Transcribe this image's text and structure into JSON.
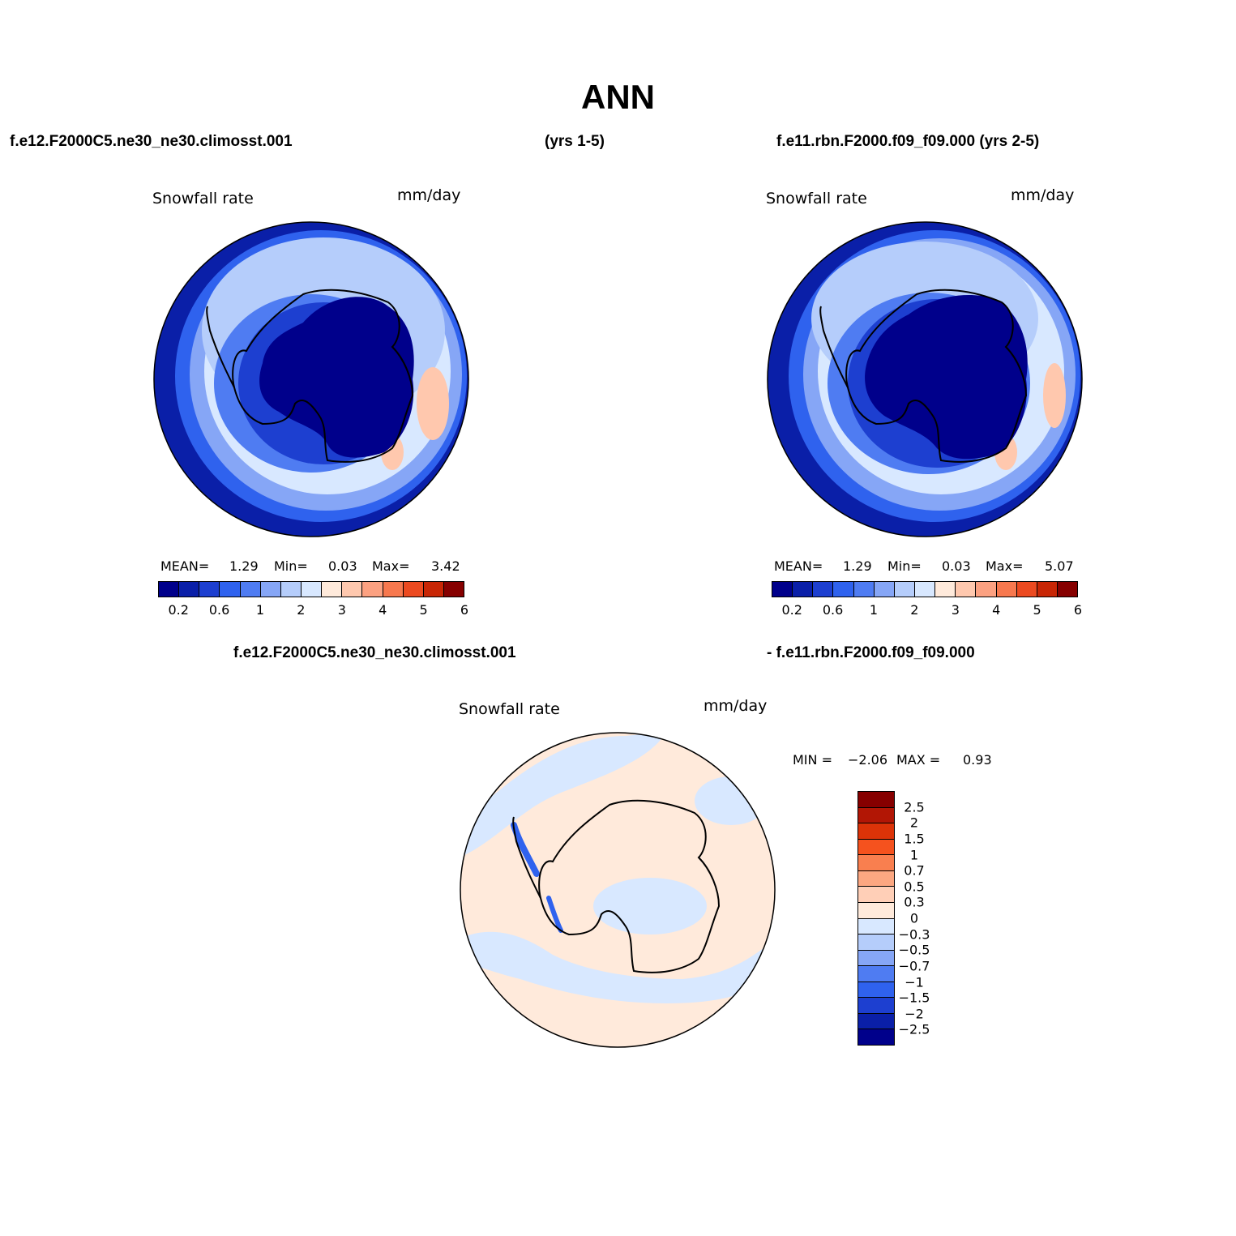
{
  "title": "ANN",
  "header": {
    "case_a": "f.e12.F2000C5.ne30_ne30.climosst.001",
    "years_a": "(yrs 1-5)",
    "case_b": "f.e11.rbn.F2000.f09_f09.000 (yrs 2-5)",
    "diff_a": "f.e12.F2000C5.ne30_ne30.climosst.001",
    "diff_b": "- f.e11.rbn.F2000.f09_f09.000"
  },
  "panels": [
    {
      "variable": "Snowfall rate",
      "units": "mm/day",
      "stats": {
        "mean_label": "MEAN=",
        "mean": "1.29",
        "min_label": "Min=",
        "min": "0.03",
        "max_label": "Max=",
        "max": "3.42"
      }
    },
    {
      "variable": "Snowfall rate",
      "units": "mm/day",
      "stats": {
        "mean_label": "MEAN=",
        "mean": "1.29",
        "min_label": "Min=",
        "min": "0.03",
        "max_label": "Max=",
        "max": "5.07"
      }
    },
    {
      "variable": "Snowfall rate",
      "units": "mm/day",
      "stats": {
        "min_label": "MIN =",
        "min": "−2.06",
        "max_label": "MAX =",
        "max": "0.93"
      }
    }
  ],
  "colorbar_abs": {
    "colors": [
      "#00008b",
      "#0a1fa8",
      "#1d3fd0",
      "#2f62ee",
      "#4f7cf2",
      "#86a6f6",
      "#b5cdfb",
      "#d8e8ff",
      "#ffeadb",
      "#ffc8ae",
      "#fca181",
      "#f7784e",
      "#ec4a20",
      "#c82605",
      "#860000"
    ],
    "ticks": [
      "0.2",
      "0.6",
      "1",
      "2",
      "3",
      "4",
      "5",
      "6"
    ]
  },
  "colorbar_diff": {
    "colors": [
      "#860000",
      "#b21605",
      "#dc3308",
      "#f5521e",
      "#f97f4f",
      "#fca781",
      "#ffcfb7",
      "#ffeadb",
      "#d8e8ff",
      "#b5cdfb",
      "#86a6f6",
      "#4f7cf2",
      "#2f62ee",
      "#1d3fd0",
      "#0a1fa8",
      "#00008b"
    ],
    "ticks": [
      "2.5",
      "2",
      "1.5",
      "1",
      "0.7",
      "0.5",
      "0.3",
      "0",
      "−0.3",
      "−0.5",
      "−0.7",
      "−1",
      "−1.5",
      "−2",
      "−2.5"
    ]
  },
  "map_colors": {
    "ocean_outer": "#0a1fa8",
    "ring2": "#2f62ee",
    "ring3": "#86a6f6",
    "ring4": "#b5cdfb",
    "ring5": "#d8e8ff",
    "inner_mid": "#4f7cf2",
    "inner_dark": "#1d3fd0",
    "interior": "#00008b",
    "warm": "#ffc8ae",
    "diff_pos": "#ffeadb",
    "diff_neg": "#d8e8ff",
    "diff_strong": "#2f62ee"
  }
}
